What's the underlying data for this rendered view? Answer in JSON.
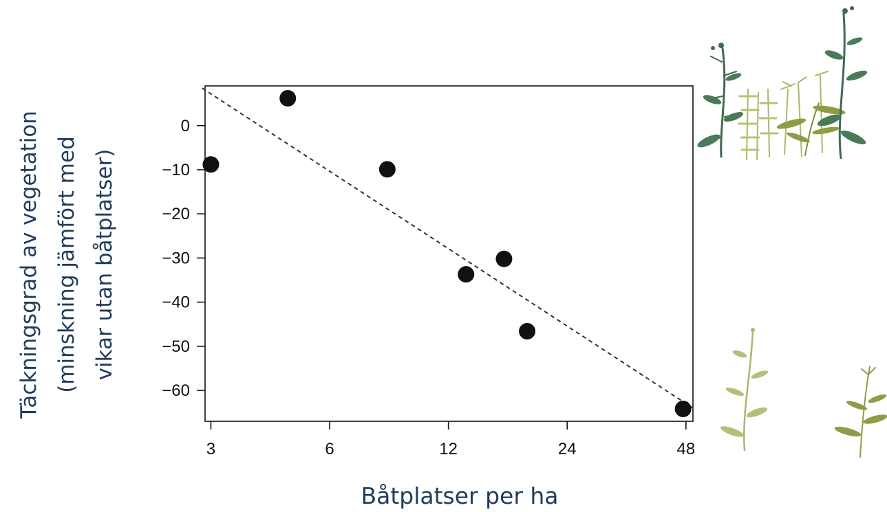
{
  "chart_data": {
    "type": "scatter",
    "title": "",
    "xlabel": "Båtplatser per ha",
    "ylabel_lines": [
      "Täckningsgrad av vegetation",
      "(minskning jämfört med",
      "vikar utan båtplatser)"
    ],
    "x_scale": "log2",
    "xlim": [
      2.9,
      50
    ],
    "ylim": [
      -67,
      9
    ],
    "x_ticks": [
      3,
      6,
      12,
      24,
      48
    ],
    "y_ticks": [
      0,
      -10,
      -20,
      -30,
      -40,
      -50,
      -60
    ],
    "y_tick_labels": [
      "0",
      "−10",
      "−20",
      "−30",
      "−40",
      "−50",
      "−60"
    ],
    "series": [
      {
        "points": [
          {
            "x": 3,
            "y": -8.8
          },
          {
            "x": 4.7,
            "y": 6.2
          },
          {
            "x": 8.4,
            "y": -9.9
          },
          {
            "x": 13.3,
            "y": -33.7
          },
          {
            "x": 16.6,
            "y": -30.2
          },
          {
            "x": 19,
            "y": -46.6
          },
          {
            "x": 47.2,
            "y": -64.2
          }
        ]
      }
    ],
    "trendline": {
      "style": "dashed",
      "from": {
        "x": 2.85,
        "y": 8.5
      },
      "to": {
        "x": 50,
        "y": -64
      }
    },
    "grid": false,
    "legend": "none",
    "colors": {
      "points": "#111111",
      "axis_label": "#1f3c5c",
      "plants_dark": "#3f6b4f",
      "plants_light": "#a9b86a",
      "plants_olive": "#7d8b3a"
    }
  },
  "decorations": {
    "top_right": "dense-aquatic-plants-illustration",
    "bottom_right": "sparse-aquatic-plants-illustration"
  }
}
